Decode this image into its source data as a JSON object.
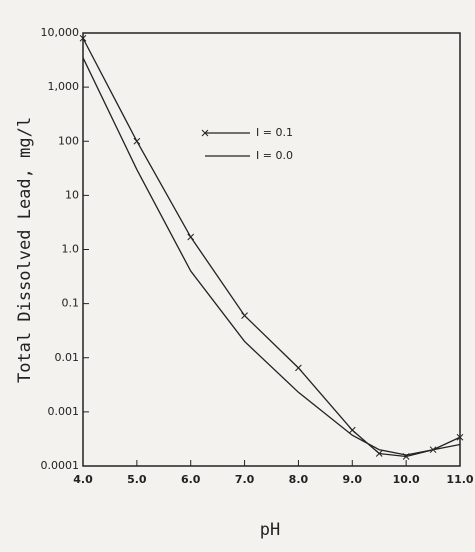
{
  "chart_data": {
    "type": "line",
    "x_label": "pH",
    "y_label": "Total Dissolved Lead, mg/l",
    "x": [
      4.0,
      5.0,
      6.0,
      7.0,
      8.0,
      9.0,
      9.5,
      10.0,
      10.5,
      11.0
    ],
    "series": [
      {
        "name": "I = 0.1",
        "color": "#222222",
        "values": [
          8000,
          100,
          1.7,
          0.06,
          0.0065,
          0.00046,
          0.00017,
          0.00015,
          0.0002,
          0.00034
        ]
      },
      {
        "name": "I = 0.0",
        "color": "#222222",
        "values": [
          3500,
          30,
          0.4,
          0.02,
          0.0023,
          0.00037,
          0.0002,
          0.00016,
          0.0002,
          0.00025
        ]
      }
    ],
    "xlim": [
      4.0,
      11.0
    ],
    "xticks": [
      {
        "value": 4,
        "label": "4.0"
      },
      {
        "value": 5,
        "label": "5.0"
      },
      {
        "value": 6,
        "label": "6.0"
      },
      {
        "value": 7,
        "label": "7.0"
      },
      {
        "value": 8,
        "label": "8.0"
      },
      {
        "value": 9,
        "label": "9.0"
      },
      {
        "value": 10,
        "label": "10.0"
      },
      {
        "value": 11,
        "label": "11.0"
      }
    ],
    "ylim": [
      0.0001,
      10000
    ],
    "yticks": [
      0.0001,
      0.001,
      0.01,
      0.1,
      {
        "value": 1,
        "label": "1.0"
      },
      10,
      100,
      {
        "value": 1000,
        "label": "1,000"
      },
      {
        "value": 10000,
        "label": "10,000"
      }
    ],
    "ylog": true,
    "grid": false
  }
}
